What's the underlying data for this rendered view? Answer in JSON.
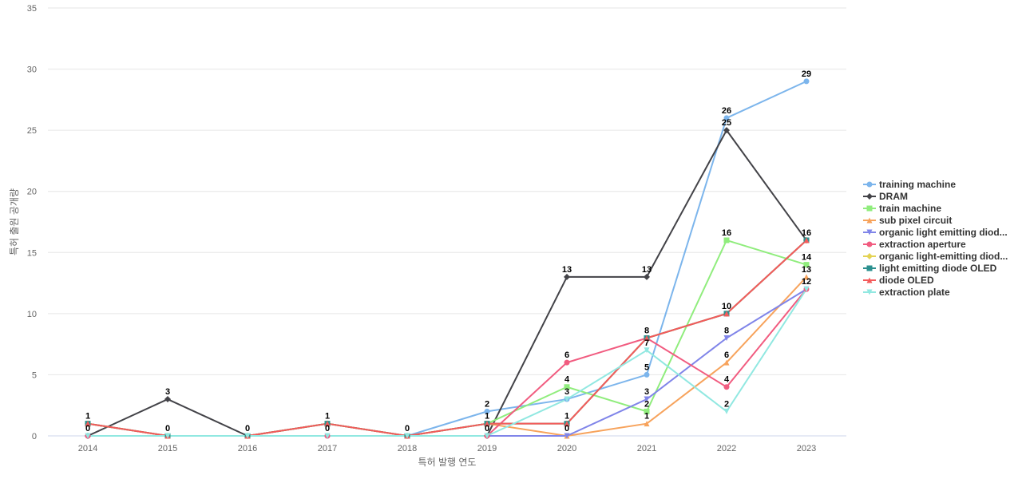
{
  "chart_data": {
    "type": "line",
    "xlabel": "특허 발행 연도",
    "ylabel": "특허 출원 공개량",
    "ylim": [
      0,
      35
    ],
    "yticks": [
      0,
      5,
      10,
      15,
      20,
      25,
      30,
      35
    ],
    "grid": true,
    "legend_position": "right",
    "categories": [
      "2014",
      "2015",
      "2016",
      "2017",
      "2018",
      "2019",
      "2020",
      "2021",
      "2022",
      "2023"
    ],
    "series": [
      {
        "name": "training machine",
        "color": "#7cb5ec",
        "marker": "circle",
        "values": [
          0,
          0,
          0,
          0,
          0,
          2,
          3,
          5,
          26,
          29
        ]
      },
      {
        "name": "DRAM",
        "color": "#434348",
        "marker": "diamond",
        "values": [
          0,
          3,
          0,
          1,
          0,
          0,
          13,
          13,
          25,
          16
        ]
      },
      {
        "name": "train machine",
        "color": "#90ed7d",
        "marker": "square",
        "values": [
          1,
          0,
          0,
          1,
          0,
          1,
          4,
          2,
          16,
          14
        ]
      },
      {
        "name": "sub pixel circuit",
        "color": "#f7a35c",
        "marker": "triangle",
        "values": [
          1,
          0,
          0,
          1,
          0,
          1,
          0,
          1,
          6,
          13
        ]
      },
      {
        "name": "organic light emitting diod...",
        "color": "#8085e9",
        "marker": "triangle-down",
        "values": [
          0,
          0,
          0,
          0,
          0,
          0,
          0,
          3,
          8,
          12
        ]
      },
      {
        "name": "extraction aperture",
        "color": "#f15c80",
        "marker": "circle",
        "values": [
          0,
          0,
          0,
          0,
          0,
          0,
          6,
          8,
          4,
          12
        ]
      },
      {
        "name": "organic light-emitting diod...",
        "color": "#e4d354",
        "marker": "diamond",
        "values": [
          1,
          0,
          0,
          1,
          0,
          1,
          1,
          8,
          10,
          16
        ]
      },
      {
        "name": "light emitting diode OLED",
        "color": "#2b908f",
        "marker": "square",
        "values": [
          1,
          0,
          0,
          1,
          0,
          1,
          1,
          8,
          10,
          16
        ]
      },
      {
        "name": "diode OLED",
        "color": "#f45b5b",
        "marker": "triangle",
        "values": [
          1,
          0,
          0,
          1,
          0,
          1,
          1,
          8,
          10,
          16
        ]
      },
      {
        "name": "extraction plate",
        "color": "#91e8e1",
        "marker": "triangle-down",
        "values": [
          0,
          0,
          0,
          0,
          0,
          0,
          3,
          7,
          2,
          12
        ]
      }
    ],
    "data_labels": [
      {
        "x": "2014",
        "series": "train machine",
        "text": "1"
      },
      {
        "x": "2014",
        "series": "DRAM",
        "text": "0"
      },
      {
        "x": "2015",
        "series": "DRAM",
        "text": "3"
      },
      {
        "x": "2015",
        "series": "training machine",
        "text": "0"
      },
      {
        "x": "2016",
        "series": "training machine",
        "text": "0"
      },
      {
        "x": "2017",
        "series": "train machine",
        "text": "1"
      },
      {
        "x": "2017",
        "series": "training machine",
        "text": "0"
      },
      {
        "x": "2018",
        "series": "training machine",
        "text": "0"
      },
      {
        "x": "2019",
        "series": "training machine",
        "text": "2"
      },
      {
        "x": "2019",
        "series": "train machine",
        "text": "1"
      },
      {
        "x": "2019",
        "series": "DRAM",
        "text": "0"
      },
      {
        "x": "2020",
        "series": "DRAM",
        "text": "13"
      },
      {
        "x": "2020",
        "series": "extraction aperture",
        "text": "6"
      },
      {
        "x": "2020",
        "series": "train machine",
        "text": "4"
      },
      {
        "x": "2020",
        "series": "training machine",
        "text": "3"
      },
      {
        "x": "2020",
        "series": "diode OLED",
        "text": "1"
      },
      {
        "x": "2020",
        "series": "sub pixel circuit",
        "text": "0"
      },
      {
        "x": "2021",
        "series": "DRAM",
        "text": "13"
      },
      {
        "x": "2021",
        "series": "diode OLED",
        "text": "8"
      },
      {
        "x": "2021",
        "series": "extraction plate",
        "text": "7"
      },
      {
        "x": "2021",
        "series": "training machine",
        "text": "5"
      },
      {
        "x": "2021",
        "series": "organic light emitting diod...",
        "text": "3"
      },
      {
        "x": "2021",
        "series": "train machine",
        "text": "2"
      },
      {
        "x": "2021",
        "series": "sub pixel circuit",
        "text": "1"
      },
      {
        "x": "2022",
        "series": "training machine",
        "text": "26"
      },
      {
        "x": "2022",
        "series": "DRAM",
        "text": "25"
      },
      {
        "x": "2022",
        "series": "train machine",
        "text": "16"
      },
      {
        "x": "2022",
        "series": "diode OLED",
        "text": "10"
      },
      {
        "x": "2022",
        "series": "organic light emitting diod...",
        "text": "8"
      },
      {
        "x": "2022",
        "series": "sub pixel circuit",
        "text": "6"
      },
      {
        "x": "2022",
        "series": "extraction aperture",
        "text": "4"
      },
      {
        "x": "2022",
        "series": "extraction plate",
        "text": "2"
      },
      {
        "x": "2023",
        "series": "training machine",
        "text": "29"
      },
      {
        "x": "2023",
        "series": "DRAM",
        "text": "16"
      },
      {
        "x": "2023",
        "series": "train machine",
        "text": "14"
      },
      {
        "x": "2023",
        "series": "sub pixel circuit",
        "text": "13"
      },
      {
        "x": "2023",
        "series": "extraction plate",
        "text": "12"
      }
    ]
  }
}
